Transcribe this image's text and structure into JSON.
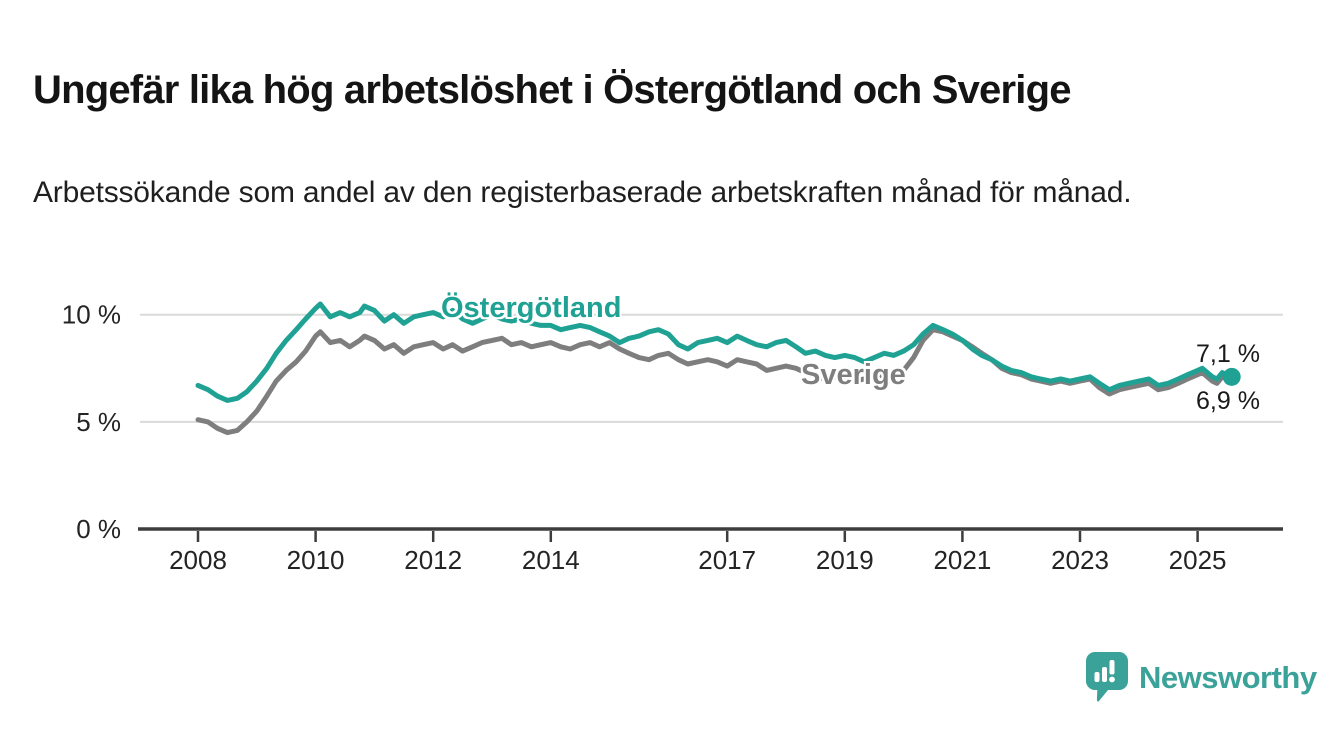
{
  "header": {
    "title": "Ungefär lika hög arbetslöshet i Östergötland och Sverige",
    "subtitle": "Arbetssökande som andel av den registerbaserade arbetskraften månad för månad."
  },
  "chart_data": {
    "type": "line",
    "title": "Ungefär lika hög arbetslöshet i Östergötland och Sverige",
    "xlabel": "",
    "ylabel": "",
    "unit": "%",
    "grid": "horizontal",
    "x_axis": {
      "ticks": [
        2008,
        2010,
        2012,
        2014,
        2017,
        2019,
        2021,
        2023,
        2025
      ],
      "range": [
        2008,
        2025.6
      ]
    },
    "y_axis": {
      "ticks": [
        {
          "value": 0,
          "label": "0 %"
        },
        {
          "value": 5,
          "label": "5 %"
        },
        {
          "value": 10,
          "label": "10 %"
        }
      ],
      "range": [
        0,
        11.6
      ]
    },
    "series": [
      {
        "name": "Östergötland",
        "color": "#1FA294",
        "end_label": "7,1 %",
        "end_value": 7.1,
        "end_dot": true,
        "points": [
          [
            2008.0,
            6.7
          ],
          [
            2008.17,
            6.5
          ],
          [
            2008.33,
            6.2
          ],
          [
            2008.5,
            6.0
          ],
          [
            2008.67,
            6.1
          ],
          [
            2008.83,
            6.4
          ],
          [
            2009.0,
            6.9
          ],
          [
            2009.17,
            7.5
          ],
          [
            2009.33,
            8.2
          ],
          [
            2009.5,
            8.8
          ],
          [
            2009.67,
            9.3
          ],
          [
            2009.83,
            9.8
          ],
          [
            2010.0,
            10.3
          ],
          [
            2010.08,
            10.5
          ],
          [
            2010.25,
            9.9
          ],
          [
            2010.42,
            10.1
          ],
          [
            2010.58,
            9.9
          ],
          [
            2010.75,
            10.1
          ],
          [
            2010.83,
            10.4
          ],
          [
            2011.0,
            10.2
          ],
          [
            2011.17,
            9.7
          ],
          [
            2011.33,
            10.0
          ],
          [
            2011.5,
            9.6
          ],
          [
            2011.67,
            9.9
          ],
          [
            2011.83,
            10.0
          ],
          [
            2012.0,
            10.1
          ],
          [
            2012.17,
            9.9
          ],
          [
            2012.33,
            10.2
          ],
          [
            2012.5,
            9.8
          ],
          [
            2012.67,
            9.6
          ],
          [
            2012.83,
            9.8
          ],
          [
            2013.0,
            10.0
          ],
          [
            2013.17,
            9.8
          ],
          [
            2013.33,
            9.7
          ],
          [
            2013.5,
            9.8
          ],
          [
            2013.67,
            9.6
          ],
          [
            2013.83,
            9.5
          ],
          [
            2014.0,
            9.5
          ],
          [
            2014.17,
            9.3
          ],
          [
            2014.33,
            9.4
          ],
          [
            2014.5,
            9.5
          ],
          [
            2014.67,
            9.4
          ],
          [
            2014.83,
            9.2
          ],
          [
            2015.0,
            9.0
          ],
          [
            2015.17,
            8.7
          ],
          [
            2015.33,
            8.9
          ],
          [
            2015.5,
            9.0
          ],
          [
            2015.67,
            9.2
          ],
          [
            2015.83,
            9.3
          ],
          [
            2016.0,
            9.1
          ],
          [
            2016.17,
            8.6
          ],
          [
            2016.33,
            8.4
          ],
          [
            2016.5,
            8.7
          ],
          [
            2016.67,
            8.8
          ],
          [
            2016.83,
            8.9
          ],
          [
            2017.0,
            8.7
          ],
          [
            2017.17,
            9.0
          ],
          [
            2017.33,
            8.8
          ],
          [
            2017.5,
            8.6
          ],
          [
            2017.67,
            8.5
          ],
          [
            2017.83,
            8.7
          ],
          [
            2018.0,
            8.8
          ],
          [
            2018.17,
            8.5
          ],
          [
            2018.33,
            8.2
          ],
          [
            2018.5,
            8.3
          ],
          [
            2018.67,
            8.1
          ],
          [
            2018.83,
            8.0
          ],
          [
            2019.0,
            8.1
          ],
          [
            2019.17,
            8.0
          ],
          [
            2019.33,
            7.8
          ],
          [
            2019.5,
            8.0
          ],
          [
            2019.67,
            8.2
          ],
          [
            2019.83,
            8.1
          ],
          [
            2020.0,
            8.3
          ],
          [
            2020.17,
            8.6
          ],
          [
            2020.33,
            9.1
          ],
          [
            2020.5,
            9.5
          ],
          [
            2020.67,
            9.3
          ],
          [
            2020.83,
            9.1
          ],
          [
            2021.0,
            8.8
          ],
          [
            2021.17,
            8.4
          ],
          [
            2021.33,
            8.1
          ],
          [
            2021.5,
            7.9
          ],
          [
            2021.67,
            7.6
          ],
          [
            2021.83,
            7.4
          ],
          [
            2022.0,
            7.3
          ],
          [
            2022.17,
            7.1
          ],
          [
            2022.33,
            7.0
          ],
          [
            2022.5,
            6.9
          ],
          [
            2022.67,
            7.0
          ],
          [
            2022.83,
            6.9
          ],
          [
            2023.0,
            7.0
          ],
          [
            2023.17,
            7.1
          ],
          [
            2023.33,
            6.8
          ],
          [
            2023.5,
            6.5
          ],
          [
            2023.67,
            6.7
          ],
          [
            2023.83,
            6.8
          ],
          [
            2024.0,
            6.9
          ],
          [
            2024.17,
            7.0
          ],
          [
            2024.33,
            6.7
          ],
          [
            2024.5,
            6.8
          ],
          [
            2024.67,
            7.0
          ],
          [
            2024.83,
            7.2
          ],
          [
            2025.0,
            7.4
          ],
          [
            2025.08,
            7.5
          ],
          [
            2025.25,
            7.1
          ],
          [
            2025.33,
            7.0
          ],
          [
            2025.42,
            7.3
          ],
          [
            2025.58,
            7.1
          ]
        ]
      },
      {
        "name": "Sverige",
        "color": "#7E7E7E",
        "end_label": "6,9 %",
        "end_value": 6.9,
        "end_dot": false,
        "points": [
          [
            2008.0,
            5.1
          ],
          [
            2008.17,
            5.0
          ],
          [
            2008.33,
            4.7
          ],
          [
            2008.5,
            4.5
          ],
          [
            2008.67,
            4.6
          ],
          [
            2008.83,
            5.0
          ],
          [
            2009.0,
            5.5
          ],
          [
            2009.17,
            6.2
          ],
          [
            2009.33,
            6.9
          ],
          [
            2009.5,
            7.4
          ],
          [
            2009.67,
            7.8
          ],
          [
            2009.83,
            8.3
          ],
          [
            2010.0,
            9.0
          ],
          [
            2010.08,
            9.2
          ],
          [
            2010.25,
            8.7
          ],
          [
            2010.42,
            8.8
          ],
          [
            2010.58,
            8.5
          ],
          [
            2010.75,
            8.8
          ],
          [
            2010.83,
            9.0
          ],
          [
            2011.0,
            8.8
          ],
          [
            2011.17,
            8.4
          ],
          [
            2011.33,
            8.6
          ],
          [
            2011.5,
            8.2
          ],
          [
            2011.67,
            8.5
          ],
          [
            2011.83,
            8.6
          ],
          [
            2012.0,
            8.7
          ],
          [
            2012.17,
            8.4
          ],
          [
            2012.33,
            8.6
          ],
          [
            2012.5,
            8.3
          ],
          [
            2012.67,
            8.5
          ],
          [
            2012.83,
            8.7
          ],
          [
            2013.0,
            8.8
          ],
          [
            2013.17,
            8.9
          ],
          [
            2013.33,
            8.6
          ],
          [
            2013.5,
            8.7
          ],
          [
            2013.67,
            8.5
          ],
          [
            2013.83,
            8.6
          ],
          [
            2014.0,
            8.7
          ],
          [
            2014.17,
            8.5
          ],
          [
            2014.33,
            8.4
          ],
          [
            2014.5,
            8.6
          ],
          [
            2014.67,
            8.7
          ],
          [
            2014.83,
            8.5
          ],
          [
            2015.0,
            8.7
          ],
          [
            2015.17,
            8.4
          ],
          [
            2015.33,
            8.2
          ],
          [
            2015.5,
            8.0
          ],
          [
            2015.67,
            7.9
          ],
          [
            2015.83,
            8.1
          ],
          [
            2016.0,
            8.2
          ],
          [
            2016.17,
            7.9
          ],
          [
            2016.33,
            7.7
          ],
          [
            2016.5,
            7.8
          ],
          [
            2016.67,
            7.9
          ],
          [
            2016.83,
            7.8
          ],
          [
            2017.0,
            7.6
          ],
          [
            2017.17,
            7.9
          ],
          [
            2017.33,
            7.8
          ],
          [
            2017.5,
            7.7
          ],
          [
            2017.67,
            7.4
          ],
          [
            2017.83,
            7.5
          ],
          [
            2018.0,
            7.6
          ],
          [
            2018.17,
            7.5
          ],
          [
            2018.33,
            7.3
          ],
          [
            2018.5,
            7.1
          ],
          [
            2018.67,
            7.0
          ],
          [
            2018.83,
            7.1
          ],
          [
            2019.0,
            7.0
          ],
          [
            2019.17,
            6.9
          ],
          [
            2019.33,
            7.0
          ],
          [
            2019.5,
            7.1
          ],
          [
            2019.67,
            7.2
          ],
          [
            2019.83,
            7.1
          ],
          [
            2020.0,
            7.4
          ],
          [
            2020.17,
            8.0
          ],
          [
            2020.33,
            8.8
          ],
          [
            2020.5,
            9.3
          ],
          [
            2020.67,
            9.2
          ],
          [
            2020.83,
            9.0
          ],
          [
            2021.0,
            8.8
          ],
          [
            2021.17,
            8.5
          ],
          [
            2021.33,
            8.2
          ],
          [
            2021.5,
            7.9
          ],
          [
            2021.67,
            7.5
          ],
          [
            2021.83,
            7.3
          ],
          [
            2022.0,
            7.2
          ],
          [
            2022.17,
            7.0
          ],
          [
            2022.33,
            6.9
          ],
          [
            2022.5,
            6.8
          ],
          [
            2022.67,
            6.9
          ],
          [
            2022.83,
            6.8
          ],
          [
            2023.0,
            6.9
          ],
          [
            2023.17,
            7.0
          ],
          [
            2023.33,
            6.6
          ],
          [
            2023.5,
            6.3
          ],
          [
            2023.67,
            6.5
          ],
          [
            2023.83,
            6.6
          ],
          [
            2024.0,
            6.7
          ],
          [
            2024.17,
            6.8
          ],
          [
            2024.33,
            6.5
          ],
          [
            2024.5,
            6.6
          ],
          [
            2024.67,
            6.8
          ],
          [
            2024.83,
            7.0
          ],
          [
            2025.0,
            7.2
          ],
          [
            2025.08,
            7.3
          ],
          [
            2025.25,
            6.9
          ],
          [
            2025.33,
            6.8
          ],
          [
            2025.42,
            7.1
          ],
          [
            2025.58,
            6.9
          ]
        ]
      }
    ]
  },
  "footer": {
    "brand": "Newsworthy",
    "brand_color": "#3AA298"
  },
  "colors": {
    "teal": "#1FA294",
    "gray": "#7E7E7E",
    "grid": "#dadada",
    "axis": "#3d3d3d",
    "text": "#1a1a1a"
  }
}
